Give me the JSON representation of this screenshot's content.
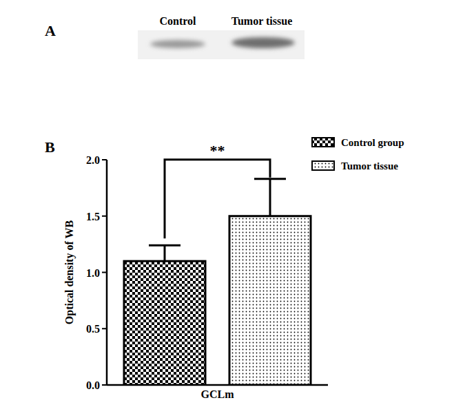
{
  "figure": {
    "panel_labels": [
      "A",
      "B"
    ],
    "blot_lanes": [
      "Control",
      "Tumor tissue"
    ]
  },
  "chart_data": {
    "type": "bar",
    "categories": [
      "GCLm"
    ],
    "y_label": "Optical density of WB",
    "series": [
      {
        "name": "Control group",
        "color": "#000000",
        "values": [
          1.1
        ],
        "errors": [
          0.14
        ]
      },
      {
        "name": "Tumor tissue",
        "color": "#000000",
        "values": [
          1.5
        ],
        "errors": [
          0.33
        ]
      }
    ],
    "ylim": [
      0,
      2.0
    ],
    "yticks": [
      {
        "value": 0,
        "label": "0.0"
      },
      {
        "value": 0.5,
        "label": "0.5"
      },
      {
        "value": 1.0,
        "label": "1.0"
      },
      {
        "value": 1.5,
        "label": "1.5"
      },
      {
        "value": 2.0,
        "label": "2.0"
      }
    ],
    "annotations": [
      "**"
    ],
    "legend": "upper right",
    "grid": false
  }
}
